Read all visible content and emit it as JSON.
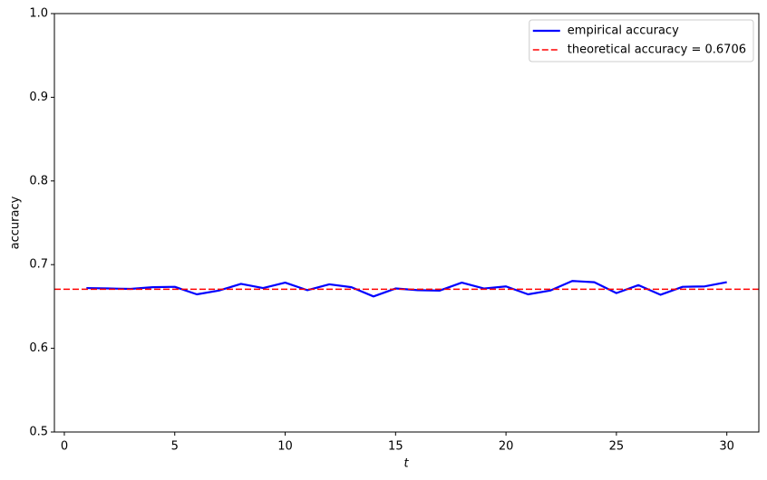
{
  "chart_data": {
    "type": "line",
    "xlabel": "t",
    "ylabel": "accuracy",
    "x": [
      1,
      2,
      3,
      4,
      5,
      6,
      7,
      8,
      9,
      10,
      11,
      12,
      13,
      14,
      15,
      16,
      17,
      18,
      19,
      20,
      21,
      22,
      23,
      24,
      25,
      26,
      27,
      28,
      29,
      30
    ],
    "series": [
      {
        "name": "empirical accuracy",
        "color": "#0000ff",
        "values": [
          0.672,
          0.6715,
          0.671,
          0.673,
          0.6735,
          0.6645,
          0.669,
          0.677,
          0.672,
          0.6785,
          0.6695,
          0.6765,
          0.673,
          0.662,
          0.6715,
          0.6695,
          0.669,
          0.6785,
          0.6715,
          0.674,
          0.6645,
          0.669,
          0.6805,
          0.679,
          0.666,
          0.6755,
          0.664,
          0.6735,
          0.674,
          0.679
        ]
      }
    ],
    "hline": {
      "name": "theoretical accuracy = 0.6706",
      "value": 0.6706,
      "color": "#ff0000",
      "style": "dashed"
    },
    "xlim": [
      -0.45,
      31.45
    ],
    "ylim": [
      0.5,
      1.0
    ],
    "xticks": [
      0,
      5,
      10,
      15,
      20,
      25,
      30
    ],
    "yticks": [
      0.5,
      0.6,
      0.7,
      0.8,
      0.9,
      {
        "value": 1.0,
        "label": "1.0"
      }
    ],
    "legend": "upper right"
  }
}
